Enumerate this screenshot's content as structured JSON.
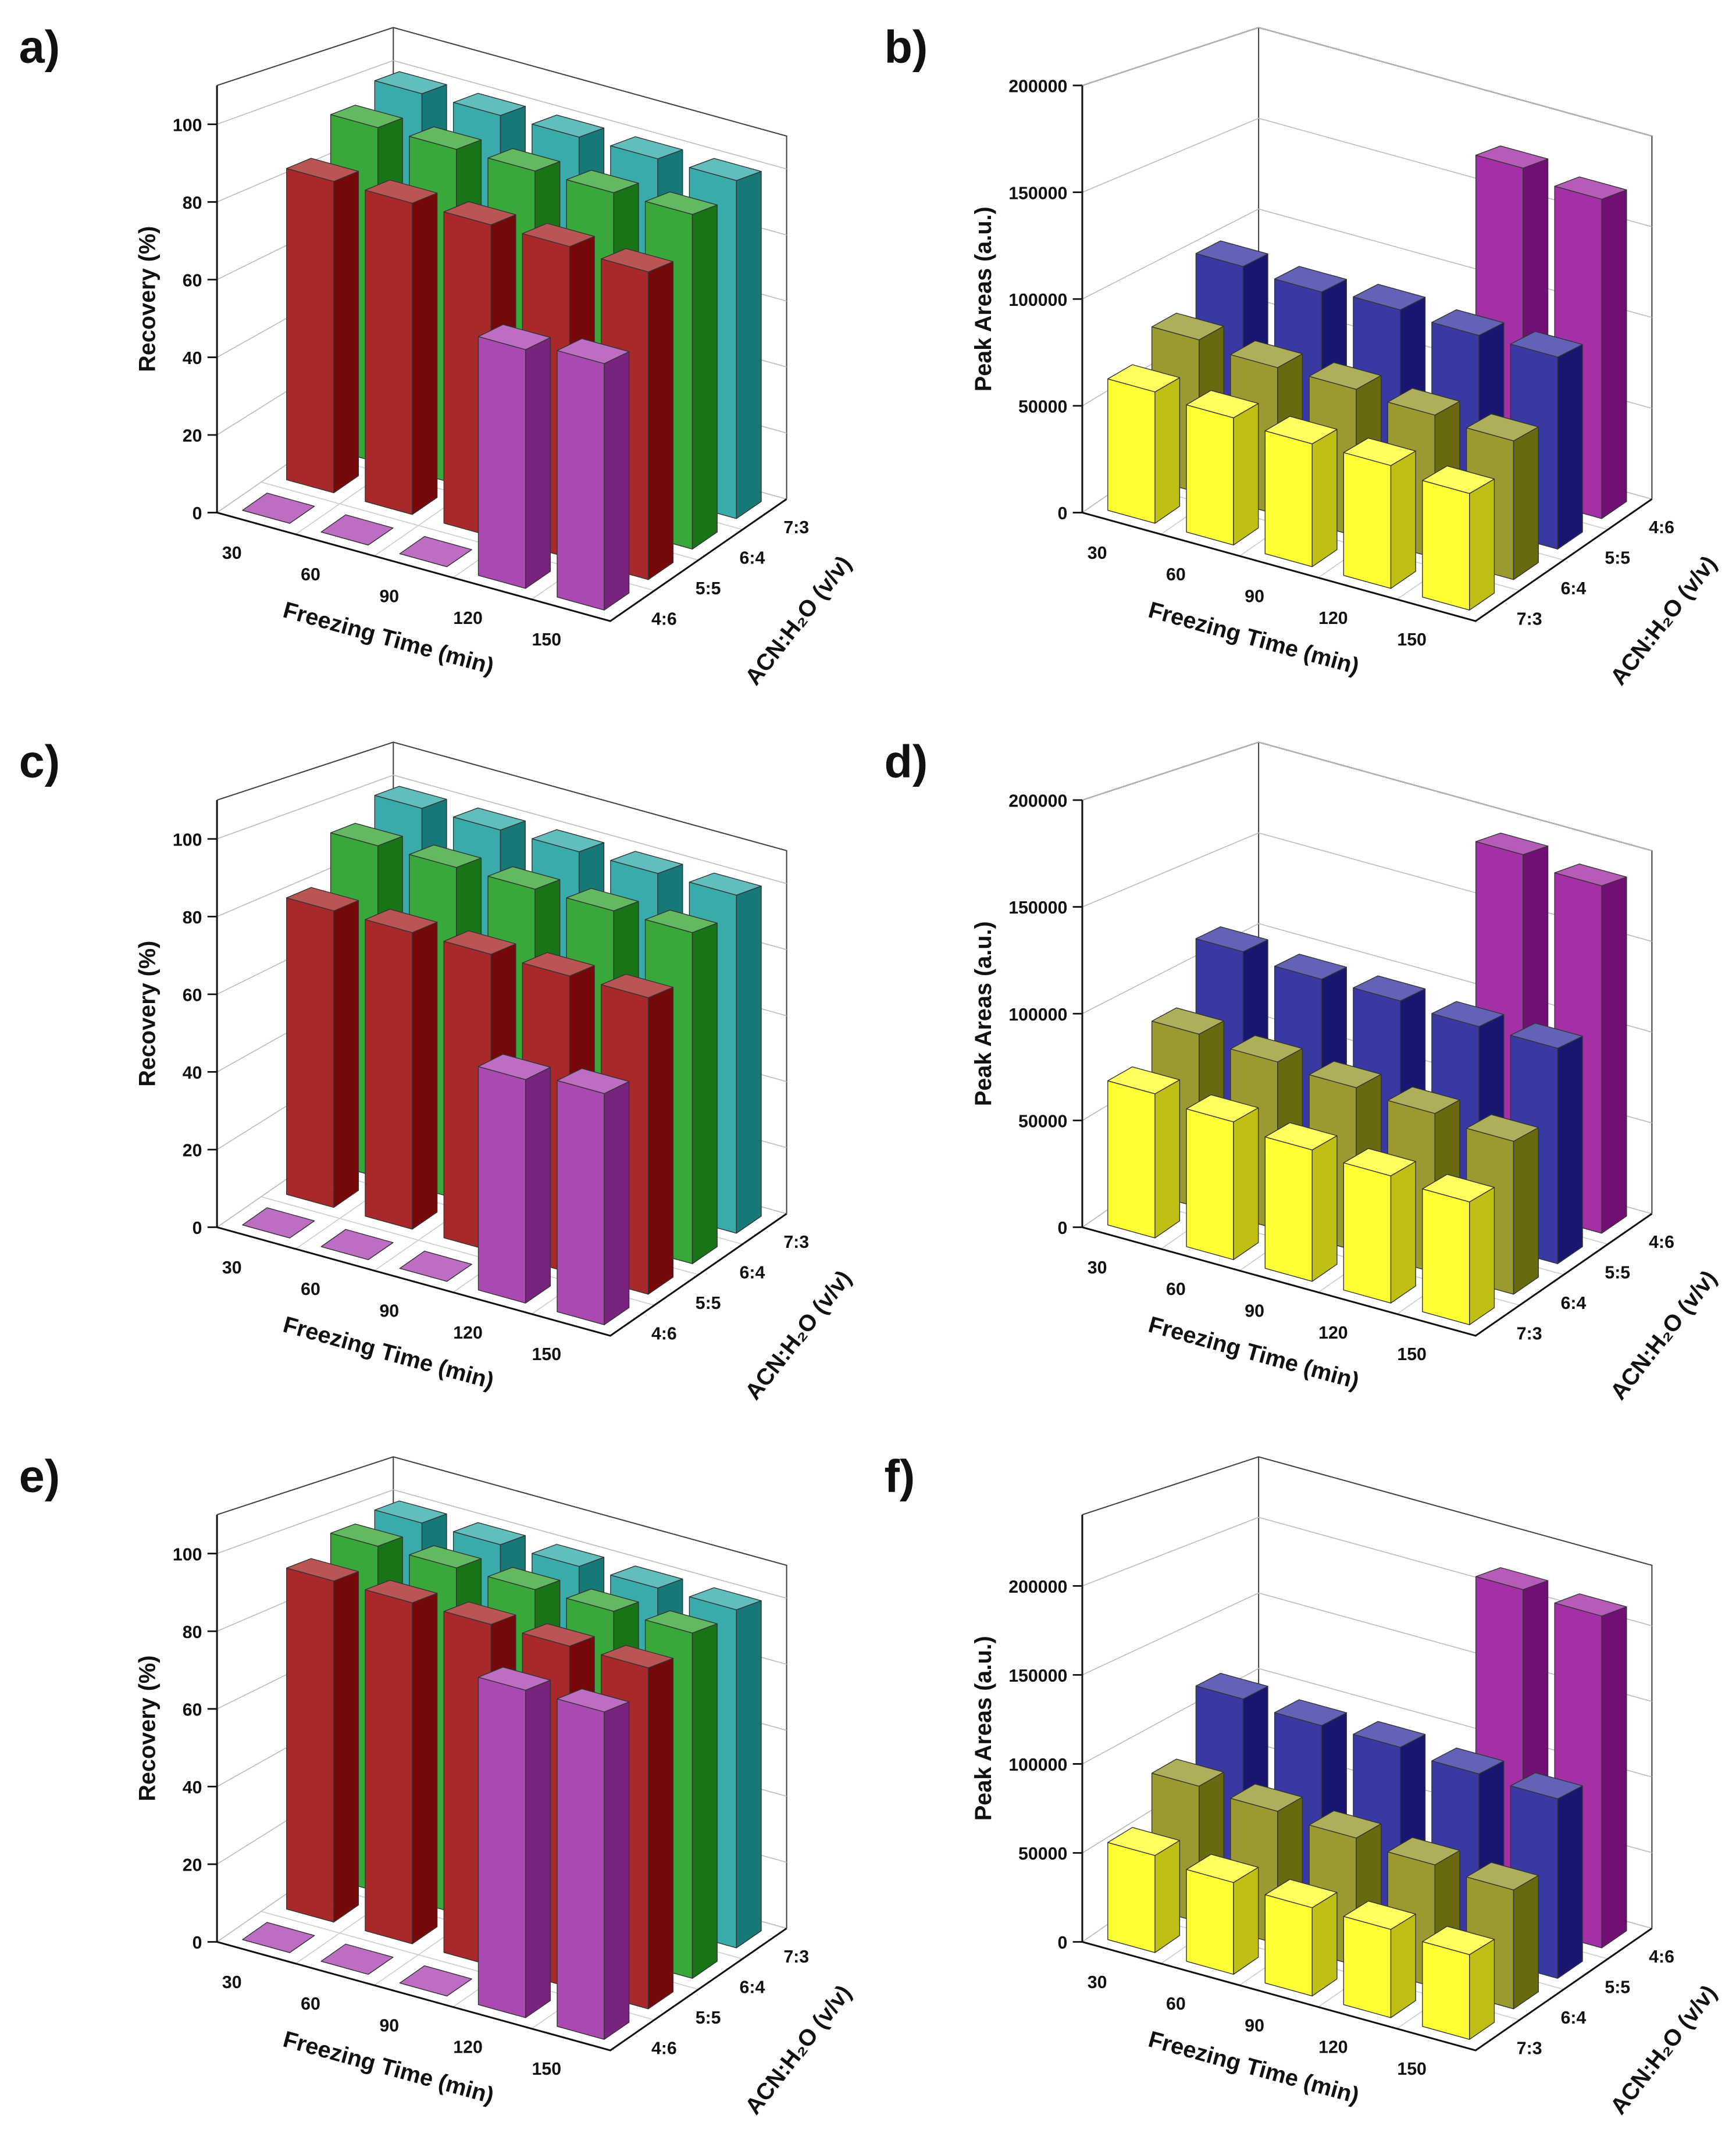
{
  "chart_data": [
    {
      "type": "bar3d",
      "panel_label": "a)",
      "categories": [
        30,
        60,
        90,
        120,
        150
      ],
      "x_label": "Freezing Time (min)",
      "y_label": "Recovery (%)",
      "z_label": "ACN:H₂O (v/v)",
      "series": [
        {
          "name": "4:6",
          "color": "#a030a8",
          "values": [
            0,
            0,
            0,
            62,
            64
          ]
        },
        {
          "name": "5:5",
          "color": "#9c0c0c",
          "values": [
            84,
            84,
            84,
            84,
            83
          ]
        },
        {
          "name": "6:4",
          "color": "#1f9b1f",
          "values": [
            94,
            94,
            94,
            94,
            94
          ]
        },
        {
          "name": "7:3",
          "color": "#1fa0a0",
          "values": [
            99,
            99,
            99,
            99,
            99
          ]
        }
      ],
      "ylim": [
        0,
        110
      ],
      "yticks": [
        0,
        20,
        40,
        60,
        80,
        100
      ],
      "grid": true
    },
    {
      "type": "bar3d",
      "panel_label": "b)",
      "categories": [
        30,
        60,
        90,
        120,
        150
      ],
      "x_label": "Freezing Time (min)",
      "y_label": "Peak Areas (a.u.)",
      "z_label": "ACN:H₂O (v/v)",
      "series": [
        {
          "name": "7:3",
          "color": "#ffff1a",
          "values": [
            62000,
            60000,
            58000,
            58000,
            55000
          ]
        },
        {
          "name": "6:4",
          "color": "#8c8c14",
          "values": [
            75000,
            72000,
            72000,
            70000,
            68000
          ]
        },
        {
          "name": "5:5",
          "color": "#1e1e96",
          "values": [
            100000,
            98000,
            100000,
            98000,
            98000
          ]
        },
        {
          "name": "4:6",
          "color": "#96149a",
          "values": [
            0,
            0,
            0,
            175000,
            170000
          ]
        }
      ],
      "ylim": [
        0,
        200000
      ],
      "yticks": [
        0,
        50000,
        100000,
        150000,
        200000
      ],
      "grid": true
    },
    {
      "type": "bar3d",
      "panel_label": "c)",
      "categories": [
        30,
        60,
        90,
        120,
        150
      ],
      "x_label": "Freezing Time (min)",
      "y_label": "Recovery (%)",
      "z_label": "ACN:H₂O (v/v)",
      "series": [
        {
          "name": "4:6",
          "color": "#a030a8",
          "values": [
            0,
            0,
            0,
            58,
            60
          ]
        },
        {
          "name": "5:5",
          "color": "#9c0c0c",
          "values": [
            80,
            80,
            80,
            80,
            80
          ]
        },
        {
          "name": "6:4",
          "color": "#1f9b1f",
          "values": [
            93,
            93,
            93,
            93,
            93
          ]
        },
        {
          "name": "7:3",
          "color": "#1fa0a0",
          "values": [
            99,
            99,
            99,
            99,
            99
          ]
        }
      ],
      "ylim": [
        0,
        110
      ],
      "yticks": [
        0,
        20,
        40,
        60,
        80,
        100
      ],
      "grid": true
    },
    {
      "type": "bar3d",
      "panel_label": "d)",
      "categories": [
        30,
        60,
        90,
        120,
        150
      ],
      "x_label": "Freezing Time (min)",
      "y_label": "Peak Areas (a.u.)",
      "z_label": "ACN:H₂O (v/v)",
      "series": [
        {
          "name": "7:3",
          "color": "#ffff1a",
          "values": [
            68000,
            65000,
            62000,
            60000,
            58000
          ]
        },
        {
          "name": "6:4",
          "color": "#8c8c14",
          "values": [
            85000,
            82000,
            80000,
            78000,
            75000
          ]
        },
        {
          "name": "5:5",
          "color": "#1e1e96",
          "values": [
            115000,
            112000,
            112000,
            110000,
            110000
          ]
        },
        {
          "name": "4:6",
          "color": "#96149a",
          "values": [
            0,
            0,
            0,
            190000,
            185000
          ]
        }
      ],
      "ylim": [
        0,
        200000
      ],
      "yticks": [
        0,
        50000,
        100000,
        150000,
        200000
      ],
      "grid": true
    },
    {
      "type": "bar3d",
      "panel_label": "e)",
      "categories": [
        30,
        60,
        90,
        120,
        150
      ],
      "x_label": "Freezing Time (min)",
      "y_label": "Recovery (%)",
      "z_label": "ACN:H₂O (v/v)",
      "series": [
        {
          "name": "4:6",
          "color": "#a030a8",
          "values": [
            0,
            0,
            0,
            85,
            85
          ]
        },
        {
          "name": "5:5",
          "color": "#9c0c0c",
          "values": [
            92,
            92,
            92,
            92,
            92
          ]
        },
        {
          "name": "6:4",
          "color": "#1f9b1f",
          "values": [
            97,
            97,
            97,
            97,
            97
          ]
        },
        {
          "name": "7:3",
          "color": "#1fa0a0",
          "values": [
            99,
            99,
            99,
            99,
            99
          ]
        }
      ],
      "ylim": [
        0,
        110
      ],
      "yticks": [
        0,
        20,
        40,
        60,
        80,
        100
      ],
      "grid": true
    },
    {
      "type": "bar3d",
      "panel_label": "f)",
      "categories": [
        30,
        60,
        90,
        120,
        150
      ],
      "x_label": "Freezing Time (min)",
      "y_label": "Peak Areas (a.u.)",
      "z_label": "ACN:H₂O (v/v)",
      "series": [
        {
          "name": "7:3",
          "color": "#ffff1a",
          "values": [
            55000,
            52000,
            50000,
            50000,
            48000
          ]
        },
        {
          "name": "6:4",
          "color": "#8c8c14",
          "values": [
            80000,
            78000,
            75000,
            72000,
            70000
          ]
        },
        {
          "name": "5:5",
          "color": "#1e1e96",
          "values": [
            118000,
            115000,
            115000,
            112000,
            110000
          ]
        },
        {
          "name": "4:6",
          "color": "#96149a",
          "values": [
            0,
            0,
            0,
            215000,
            212000
          ]
        }
      ],
      "ylim": [
        0,
        240000
      ],
      "yticks": [
        0,
        50000,
        100000,
        150000,
        200000
      ],
      "grid": true
    }
  ]
}
